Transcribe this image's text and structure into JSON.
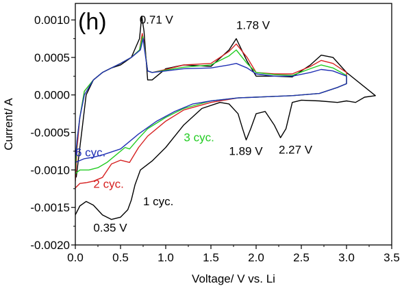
{
  "chart_data": {
    "type": "line",
    "title": "",
    "panel_label": "(h)",
    "xlabel": "Voltage/ V vs. Li",
    "ylabel": "Current/ A",
    "xlim": [
      0.0,
      3.5
    ],
    "ylim": [
      -0.002,
      0.00122
    ],
    "x_ticks": [
      0.0,
      0.5,
      1.0,
      1.5,
      2.0,
      2.5,
      3.0,
      3.5
    ],
    "x_tick_labels": [
      "0.0",
      "0.5",
      "1.0",
      "1.5",
      "2.0",
      "2.5",
      "3.0",
      "3.5"
    ],
    "y_ticks": [
      -0.002,
      -0.0015,
      -0.001,
      -0.0005,
      0.0,
      0.0005,
      0.001
    ],
    "y_tick_labels": [
      "-0.0020",
      "-0.0015",
      "-0.0010",
      "-0.0005",
      "0.0000",
      "0.0005",
      "0.0010"
    ],
    "grid": false,
    "legend": "none",
    "series": [
      {
        "color": "#000000",
        "points": [
          [
            0.0,
            -0.0016
          ],
          [
            0.05,
            -0.00148
          ],
          [
            0.12,
            -0.00142
          ],
          [
            0.2,
            -0.00147
          ],
          [
            0.3,
            -0.0016
          ],
          [
            0.4,
            -0.00166
          ],
          [
            0.5,
            -0.00163
          ],
          [
            0.58,
            -0.00153
          ],
          [
            0.62,
            -0.0014
          ],
          [
            0.66,
            -0.0012
          ],
          [
            0.72,
            -0.001
          ],
          [
            0.85,
            -0.00088
          ],
          [
            1.0,
            -0.0007
          ],
          [
            1.2,
            -0.0004
          ],
          [
            1.4,
            -0.00018
          ],
          [
            1.6,
            -0.0001
          ],
          [
            1.7,
            -0.00012
          ],
          [
            1.8,
            -0.00025
          ],
          [
            1.85,
            -0.00045
          ],
          [
            1.89,
            -0.0006
          ],
          [
            1.94,
            -0.00045
          ],
          [
            2.0,
            -0.00025
          ],
          [
            2.1,
            -0.00022
          ],
          [
            2.2,
            -0.0004
          ],
          [
            2.27,
            -0.00057
          ],
          [
            2.33,
            -0.00045
          ],
          [
            2.4,
            -0.0001
          ],
          [
            2.5,
            -7e-05
          ],
          [
            2.7,
            -8e-05
          ],
          [
            2.9,
            -0.0001
          ],
          [
            3.0,
            -8e-05
          ],
          [
            3.1,
            -0.0001
          ],
          [
            3.2,
            -3e-05
          ],
          [
            3.32,
            -1e-05
          ],
          [
            3.0,
            0.0003
          ],
          [
            2.85,
            0.0005
          ],
          [
            2.72,
            0.00053
          ],
          [
            2.6,
            0.0004
          ],
          [
            2.4,
            0.00024
          ],
          [
            2.2,
            0.00025
          ],
          [
            2.0,
            0.00025
          ],
          [
            1.9,
            0.00045
          ],
          [
            1.78,
            0.00075
          ],
          [
            1.7,
            0.0006
          ],
          [
            1.5,
            0.00038
          ],
          [
            1.2,
            0.0004
          ],
          [
            1.0,
            0.00035
          ],
          [
            0.85,
            0.0002
          ],
          [
            0.8,
            0.0002
          ],
          [
            0.76,
            0.00085
          ],
          [
            0.735,
            0.00105
          ],
          [
            0.71,
            0.00075
          ],
          [
            0.62,
            0.0005
          ],
          [
            0.5,
            0.0004
          ],
          [
            0.4,
            0.00036
          ],
          [
            0.3,
            0.0003
          ],
          [
            0.2,
            0.0002
          ],
          [
            0.12,
            0.0
          ],
          [
            0.08,
            -0.0004
          ],
          [
            0.04,
            -0.0008
          ],
          [
            0.01,
            -0.0011
          ]
        ]
      },
      {
        "color": "#d62020",
        "points": [
          [
            0.0,
            -0.00124
          ],
          [
            0.05,
            -0.00118
          ],
          [
            0.12,
            -0.00117
          ],
          [
            0.2,
            -0.00115
          ],
          [
            0.3,
            -0.0011
          ],
          [
            0.4,
            -0.00092
          ],
          [
            0.5,
            -0.00087
          ],
          [
            0.6,
            -0.0009
          ],
          [
            0.7,
            -0.0007
          ],
          [
            0.8,
            -0.00055
          ],
          [
            1.0,
            -0.00035
          ],
          [
            1.2,
            -0.0002
          ],
          [
            1.5,
            -0.0001
          ],
          [
            1.8,
            -4e-05
          ],
          [
            2.0,
            -3e-05
          ],
          [
            2.4,
            -1e-05
          ],
          [
            2.7,
            2e-05
          ],
          [
            2.9,
            0.0001
          ],
          [
            3.0,
            0.00015
          ],
          [
            3.0,
            0.0003
          ],
          [
            2.85,
            0.00042
          ],
          [
            2.72,
            0.00046
          ],
          [
            2.6,
            0.00038
          ],
          [
            2.4,
            0.00028
          ],
          [
            2.2,
            0.00028
          ],
          [
            2.0,
            0.0003
          ],
          [
            1.9,
            0.0005
          ],
          [
            1.78,
            0.00068
          ],
          [
            1.7,
            0.00058
          ],
          [
            1.5,
            0.00042
          ],
          [
            1.2,
            0.0004
          ],
          [
            1.0,
            0.00034
          ],
          [
            0.85,
            0.0003
          ],
          [
            0.8,
            0.00032
          ],
          [
            0.76,
            0.0007
          ],
          [
            0.74,
            0.00082
          ],
          [
            0.71,
            0.0006
          ],
          [
            0.62,
            0.0005
          ],
          [
            0.5,
            0.00042
          ],
          [
            0.4,
            0.00036
          ],
          [
            0.3,
            0.0003
          ],
          [
            0.2,
            0.0002
          ],
          [
            0.1,
            5e-05
          ],
          [
            0.05,
            -0.0003
          ],
          [
            0.02,
            -0.0007
          ],
          [
            0.0,
            -0.00115
          ]
        ]
      },
      {
        "color": "#22cc22",
        "points": [
          [
            0.0,
            -0.00105
          ],
          [
            0.05,
            -0.001
          ],
          [
            0.15,
            -0.001
          ],
          [
            0.25,
            -0.00097
          ],
          [
            0.35,
            -0.0009
          ],
          [
            0.45,
            -0.0008
          ],
          [
            0.55,
            -0.0007
          ],
          [
            0.6,
            -0.00072
          ],
          [
            0.7,
            -0.00058
          ],
          [
            0.8,
            -0.00045
          ],
          [
            1.0,
            -0.0003
          ],
          [
            1.2,
            -0.00018
          ],
          [
            1.5,
            -8e-05
          ],
          [
            1.8,
            -4e-05
          ],
          [
            2.0,
            -3e-05
          ],
          [
            2.4,
            -1e-05
          ],
          [
            2.7,
            2e-05
          ],
          [
            2.9,
            0.0001
          ],
          [
            3.0,
            0.00015
          ],
          [
            3.0,
            0.00026
          ],
          [
            2.85,
            0.00036
          ],
          [
            2.72,
            0.0004
          ],
          [
            2.6,
            0.00035
          ],
          [
            2.4,
            0.00026
          ],
          [
            2.2,
            0.00027
          ],
          [
            2.0,
            0.0003
          ],
          [
            1.9,
            0.00042
          ],
          [
            1.78,
            0.0006
          ],
          [
            1.7,
            0.00052
          ],
          [
            1.5,
            0.0004
          ],
          [
            1.2,
            0.00037
          ],
          [
            1.0,
            0.00033
          ],
          [
            0.85,
            0.0003
          ],
          [
            0.8,
            0.00032
          ],
          [
            0.76,
            0.00068
          ],
          [
            0.745,
            0.00078
          ],
          [
            0.71,
            0.0006
          ],
          [
            0.62,
            0.0005
          ],
          [
            0.5,
            0.00042
          ],
          [
            0.4,
            0.00036
          ],
          [
            0.3,
            0.0003
          ],
          [
            0.2,
            0.0002
          ],
          [
            0.1,
            5e-05
          ],
          [
            0.05,
            -0.0003
          ],
          [
            0.02,
            -0.0006
          ],
          [
            0.0,
            -0.001
          ]
        ]
      },
      {
        "color": "#1f2fb4",
        "points": [
          [
            0.0,
            -0.0009
          ],
          [
            0.1,
            -0.00085
          ],
          [
            0.2,
            -0.00083
          ],
          [
            0.3,
            -0.0008
          ],
          [
            0.5,
            -0.00072
          ],
          [
            0.7,
            -0.00052
          ],
          [
            0.9,
            -0.00035
          ],
          [
            1.1,
            -0.00022
          ],
          [
            1.3,
            -0.00012
          ],
          [
            1.5,
            -8e-05
          ],
          [
            1.8,
            -4e-05
          ],
          [
            2.0,
            -3e-05
          ],
          [
            2.4,
            -1e-05
          ],
          [
            2.7,
            2e-05
          ],
          [
            2.9,
            0.0001
          ],
          [
            3.0,
            0.00015
          ],
          [
            3.0,
            0.00025
          ],
          [
            2.85,
            0.00032
          ],
          [
            2.72,
            0.00034
          ],
          [
            2.6,
            0.0003
          ],
          [
            2.4,
            0.00025
          ],
          [
            2.2,
            0.00025
          ],
          [
            2.0,
            0.00028
          ],
          [
            1.9,
            0.00036
          ],
          [
            1.78,
            0.00042
          ],
          [
            1.7,
            0.0004
          ],
          [
            1.5,
            0.00036
          ],
          [
            1.2,
            0.00035
          ],
          [
            1.0,
            0.00032
          ],
          [
            0.85,
            0.0003
          ],
          [
            0.8,
            0.00032
          ],
          [
            0.76,
            0.00065
          ],
          [
            0.75,
            0.00075
          ],
          [
            0.72,
            0.0006
          ],
          [
            0.62,
            0.0005
          ],
          [
            0.5,
            0.00042
          ],
          [
            0.4,
            0.00036
          ],
          [
            0.3,
            0.0003
          ],
          [
            0.2,
            0.0002
          ],
          [
            0.1,
            0.0
          ],
          [
            0.05,
            -0.0003
          ],
          [
            0.02,
            -0.0006
          ],
          [
            0.0,
            -0.00085
          ]
        ]
      }
    ],
    "annotations": [
      {
        "text": "0.71 V",
        "x": 0.71,
        "y": 0.00095,
        "color": "#000000"
      },
      {
        "text": "1.78 V",
        "x": 1.78,
        "y": 0.00088,
        "color": "#000000"
      },
      {
        "text": "6 cyc.",
        "x": 0.0,
        "y": -0.00082,
        "color": "#1f2fb4"
      },
      {
        "text": "3 cyc.",
        "x": 1.2,
        "y": -0.00062,
        "color": "#22cc22"
      },
      {
        "text": "2 cyc.",
        "x": 0.2,
        "y": -0.00124,
        "color": "#d62020"
      },
      {
        "text": "1 cyc.",
        "x": 0.75,
        "y": -0.00147,
        "color": "#000000"
      },
      {
        "text": "1.89 V",
        "x": 1.7,
        "y": -0.0008,
        "color": "#000000"
      },
      {
        "text": "2.27 V",
        "x": 2.25,
        "y": -0.00078,
        "color": "#000000"
      },
      {
        "text": "0.35 V",
        "x": 0.2,
        "y": -0.00182,
        "color": "#000000"
      }
    ]
  }
}
